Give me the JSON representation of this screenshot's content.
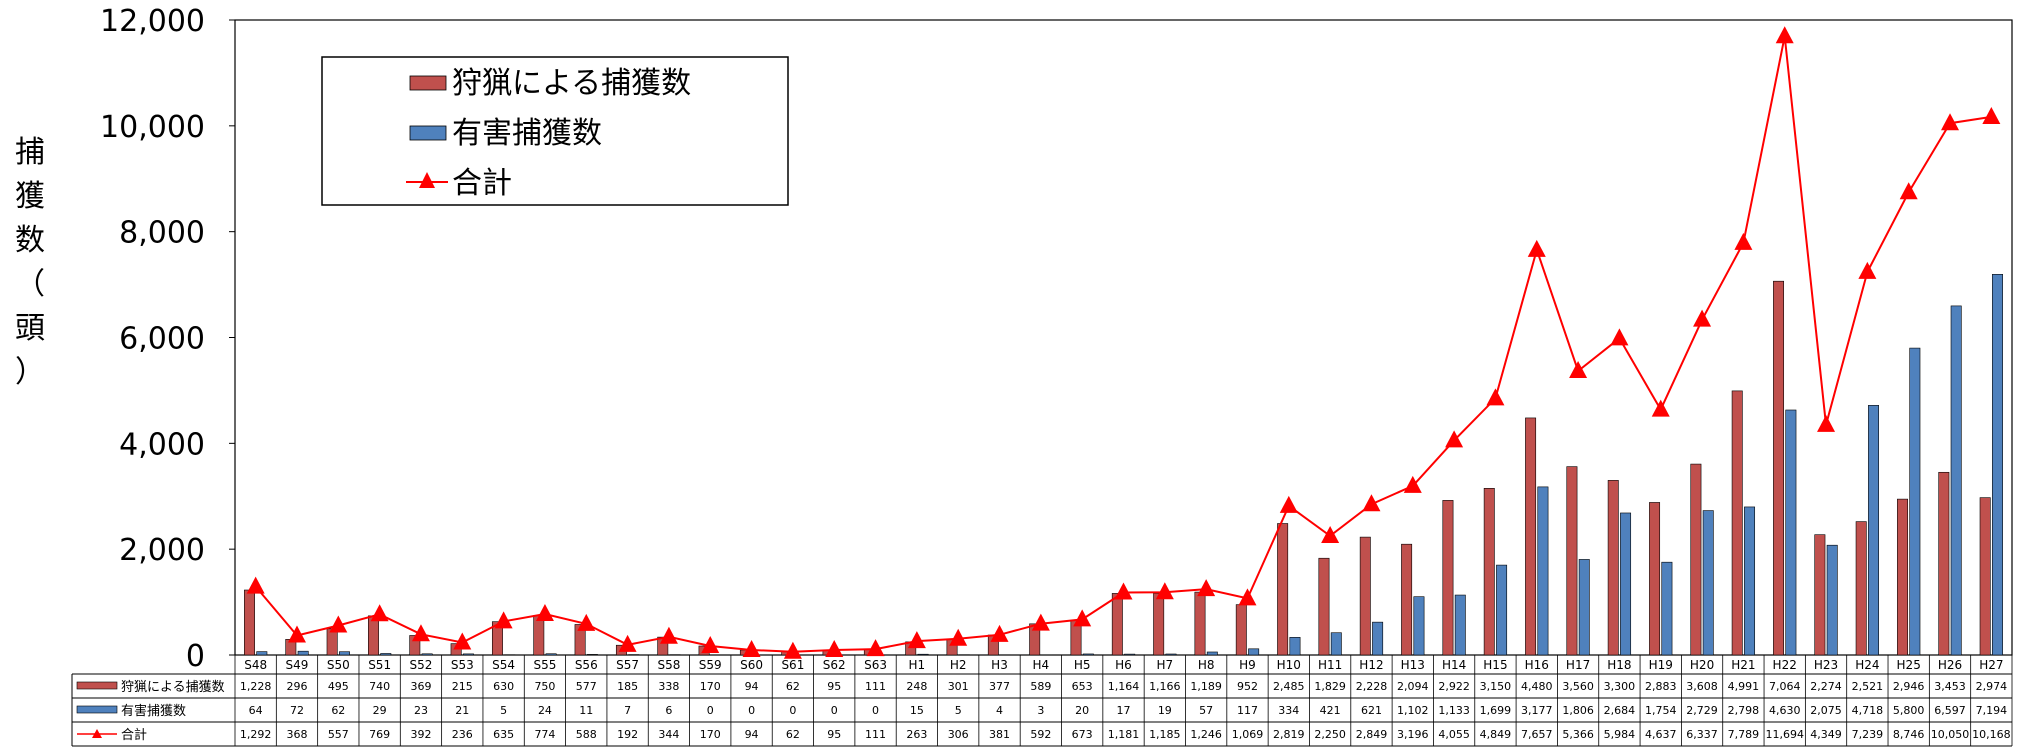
{
  "chart_data": {
    "type": "bar",
    "title": "",
    "ylabel_chars": [
      "捕",
      "獲",
      "数",
      "（",
      "頭",
      "）"
    ],
    "ylim": [
      0,
      12000
    ],
    "yticks": [
      "0",
      "2,000",
      "4,000",
      "6,000",
      "8,000",
      "10,000",
      "12,000"
    ],
    "ytick_values": [
      0,
      2000,
      4000,
      6000,
      8000,
      10000,
      12000
    ],
    "grid": false,
    "legend_position": "top-left",
    "categories": [
      "S48",
      "S49",
      "S50",
      "S51",
      "S52",
      "S53",
      "S54",
      "S55",
      "S56",
      "S57",
      "S58",
      "S59",
      "S60",
      "S61",
      "S62",
      "S63",
      "H1",
      "H2",
      "H3",
      "H4",
      "H5",
      "H6",
      "H7",
      "H8",
      "H9",
      "H10",
      "H11",
      "H12",
      "H13",
      "H14",
      "H15",
      "H16",
      "H17",
      "H18",
      "H19",
      "H20",
      "H21",
      "H22",
      "H23",
      "H24",
      "H25",
      "H26",
      "H27"
    ],
    "series": [
      {
        "name": "狩猟による捕獲数",
        "kind": "bar",
        "color": "#c0504d",
        "values": [
          1228,
          296,
          495,
          740,
          369,
          215,
          630,
          750,
          577,
          185,
          338,
          170,
          94,
          62,
          95,
          111,
          248,
          301,
          377,
          589,
          653,
          1164,
          1166,
          1189,
          952,
          2485,
          1829,
          2228,
          2094,
          2922,
          3150,
          4480,
          3560,
          3300,
          2883,
          3608,
          4991,
          7064,
          2274,
          2521,
          2946,
          3453,
          2974
        ],
        "labels": [
          "1,228",
          "296",
          "495",
          "740",
          "369",
          "215",
          "630",
          "750",
          "577",
          "185",
          "338",
          "170",
          "94",
          "62",
          "95",
          "111",
          "248",
          "301",
          "377",
          "589",
          "653",
          "1,164",
          "1,166",
          "1,189",
          "952",
          "2,485",
          "1,829",
          "2,228",
          "2,094",
          "2,922",
          "3,150",
          "4,480",
          "3,560",
          "3,300",
          "2,883",
          "3,608",
          "4,991",
          "7,064",
          "2,274",
          "2,521",
          "2,946",
          "3,453",
          "2,974"
        ]
      },
      {
        "name": "有害捕獲数",
        "kind": "bar",
        "color": "#4f81bd",
        "values": [
          64,
          72,
          62,
          29,
          23,
          21,
          5,
          24,
          11,
          7,
          6,
          0,
          0,
          0,
          0,
          0,
          15,
          5,
          4,
          3,
          20,
          17,
          19,
          57,
          117,
          334,
          421,
          621,
          1102,
          1133,
          1699,
          3177,
          1806,
          2684,
          1754,
          2729,
          2798,
          4630,
          2075,
          4718,
          5800,
          6597,
          7194
        ],
        "labels": [
          "64",
          "72",
          "62",
          "29",
          "23",
          "21",
          "5",
          "24",
          "11",
          "7",
          "6",
          "0",
          "0",
          "0",
          "0",
          "0",
          "15",
          "5",
          "4",
          "3",
          "20",
          "17",
          "19",
          "57",
          "117",
          "334",
          "421",
          "621",
          "1,102",
          "1,133",
          "1,699",
          "3,177",
          "1,806",
          "2,684",
          "1,754",
          "2,729",
          "2,798",
          "4,630",
          "2,075",
          "4,718",
          "5,800",
          "6,597",
          "7,194"
        ]
      },
      {
        "name": "合計",
        "kind": "line",
        "color": "#ff0000",
        "values": [
          1292,
          368,
          557,
          769,
          392,
          236,
          635,
          774,
          588,
          192,
          344,
          170,
          94,
          62,
          95,
          111,
          263,
          306,
          381,
          592,
          673,
          1181,
          1185,
          1246,
          1069,
          2819,
          2250,
          2849,
          3196,
          4055,
          4849,
          7657,
          5366,
          5984,
          4637,
          6337,
          7789,
          11694,
          4349,
          7239,
          8746,
          10050,
          10168
        ],
        "labels": [
          "1,292",
          "368",
          "557",
          "769",
          "392",
          "236",
          "635",
          "774",
          "588",
          "192",
          "344",
          "170",
          "94",
          "62",
          "95",
          "111",
          "263",
          "306",
          "381",
          "592",
          "673",
          "1,181",
          "1,185",
          "1,246",
          "1,069",
          "2,819",
          "2,250",
          "2,849",
          "3,196",
          "4,055",
          "4,849",
          "7,657",
          "5,366",
          "5,984",
          "4,637",
          "6,337",
          "7,789",
          "11,694",
          "4,349",
          "7,239",
          "8,746",
          "10,050",
          "10,168"
        ]
      }
    ]
  }
}
